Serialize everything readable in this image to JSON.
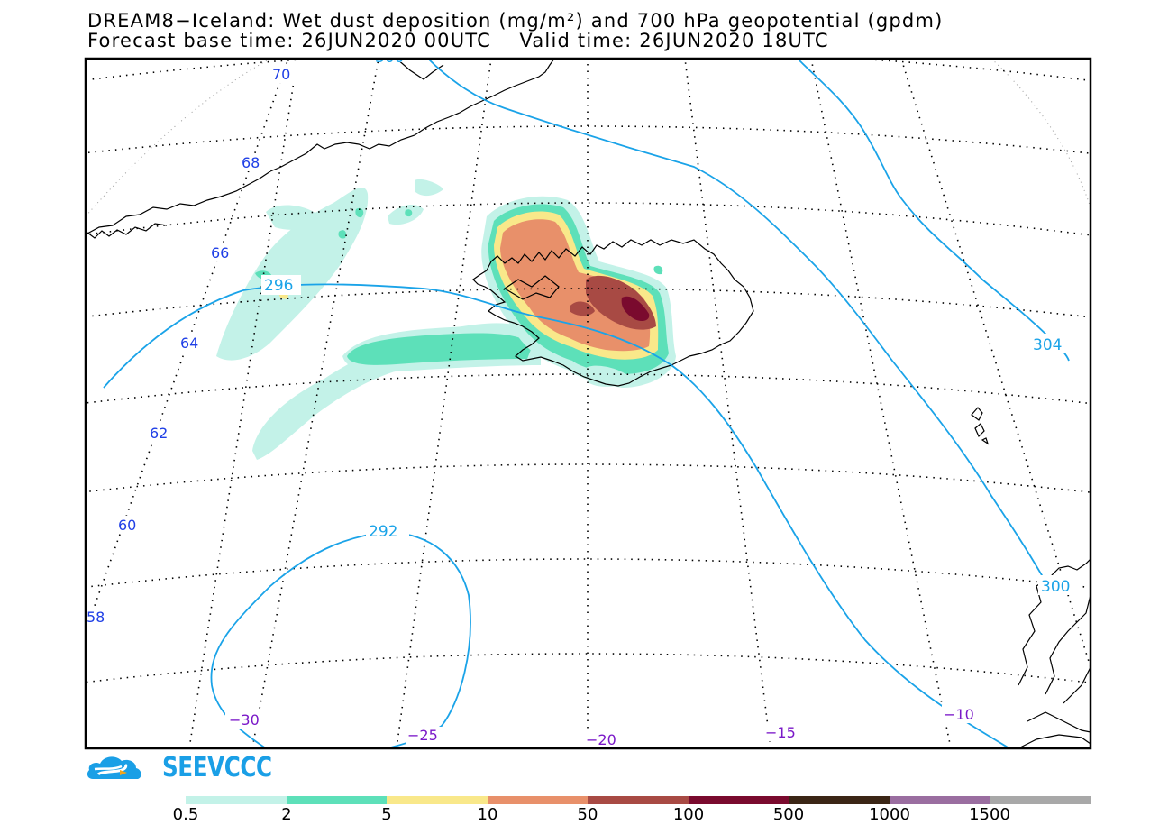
{
  "title": {
    "line1": "DREAM8−Iceland: Wet dust deposition (mg/m²) and 700 hPa geopotential (gpdm)",
    "line2": "Forecast base time: 26JUN2020 00UTC    Valid time: 26JUN2020 18UTC"
  },
  "map": {
    "latitude_labels": [
      "70",
      "68",
      "66",
      "64",
      "62",
      "60",
      "58"
    ],
    "longitude_labels": [
      "−30",
      "−25",
      "−20",
      "−15",
      "−10"
    ],
    "contour_labels": [
      "296",
      "292",
      "304",
      "300",
      "300"
    ],
    "geopotential_color": "#1aa3e8",
    "coastline_color": "#000000"
  },
  "logo": {
    "text": "SEEVCCC"
  },
  "colorbar": {
    "colors": [
      "#c3f2e8",
      "#5de0b9",
      "#f9e88a",
      "#e8906a",
      "#a84a44",
      "#7a0a2e",
      "#3b2616",
      "#9a6ea0",
      "#a8a8a8"
    ],
    "labels": [
      "0.5",
      "2",
      "5",
      "10",
      "50",
      "100",
      "500",
      "1000",
      "1500"
    ]
  }
}
